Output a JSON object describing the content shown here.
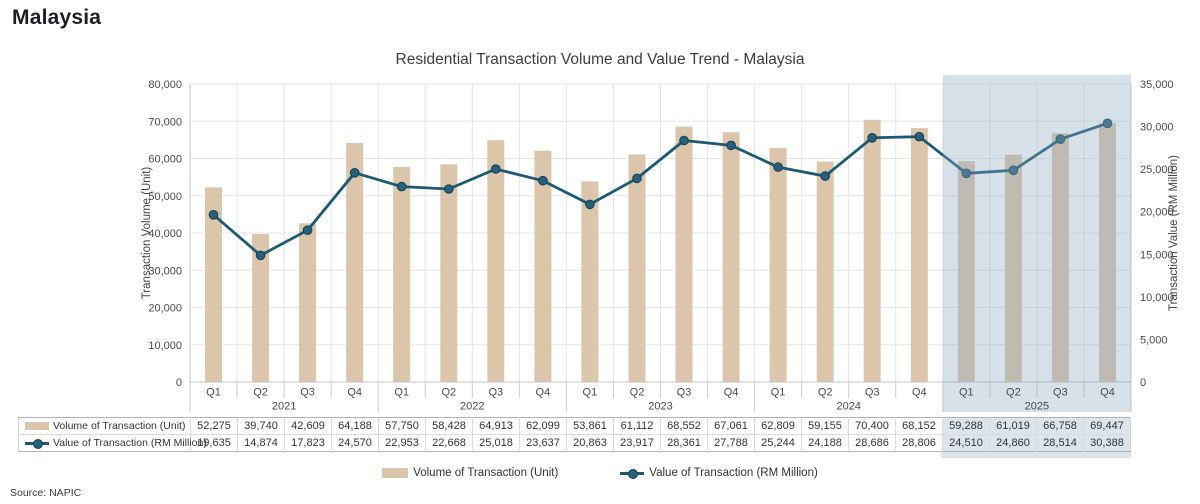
{
  "page": {
    "heading": "Malaysia",
    "source": "Source: NAPIC"
  },
  "chart_data": {
    "type": "combo",
    "title": "Residential Transaction Volume and Value Trend - Malaysia",
    "categories": [
      "Q1",
      "Q2",
      "Q3",
      "Q4",
      "Q1",
      "Q2",
      "Q3",
      "Q4",
      "Q1",
      "Q2",
      "Q3",
      "Q4",
      "Q1",
      "Q2",
      "Q3",
      "Q4",
      "Q1",
      "Q2",
      "Q3",
      "Q4"
    ],
    "year_groups": [
      {
        "label": "2021",
        "span": 4
      },
      {
        "label": "2022",
        "span": 4
      },
      {
        "label": "2023",
        "span": 4
      },
      {
        "label": "2024",
        "span": 4
      },
      {
        "label": "2025",
        "span": 4
      }
    ],
    "series": [
      {
        "name": "Volume of Transaction (Unit)",
        "type": "bar",
        "axis": "left",
        "color": "#dbc5ab",
        "values": [
          52275,
          39740,
          42609,
          64188,
          57750,
          58428,
          64913,
          62099,
          53861,
          61112,
          68552,
          67061,
          62809,
          59155,
          70400,
          68152,
          59288,
          61019,
          66758,
          69447
        ]
      },
      {
        "name": "Value of Transaction (RM Million)",
        "type": "line",
        "axis": "right",
        "color": "#1c5a74",
        "marker_fill": "#26607c",
        "marker_stroke": "#123f54",
        "values": [
          19635,
          14874,
          17823,
          24570,
          22953,
          22668,
          25018,
          23637,
          20863,
          23917,
          28361,
          27788,
          25244,
          24188,
          28686,
          28806,
          24510,
          24860,
          28514,
          30388
        ]
      }
    ],
    "left_axis": {
      "label": "Transaction Volume (Unit)",
      "min": 0,
      "max": 80000,
      "step": 10000
    },
    "right_axis": {
      "label": "Transaction Value (RM Million)",
      "min": 0,
      "max": 35000,
      "step": 5000
    },
    "highlight": {
      "start_index": 16,
      "end_index": 19,
      "overlay_color": "rgba(141,168,194,0.35)",
      "table_color": "#dce4ec"
    },
    "grid": true,
    "legend_position": "bottom"
  }
}
